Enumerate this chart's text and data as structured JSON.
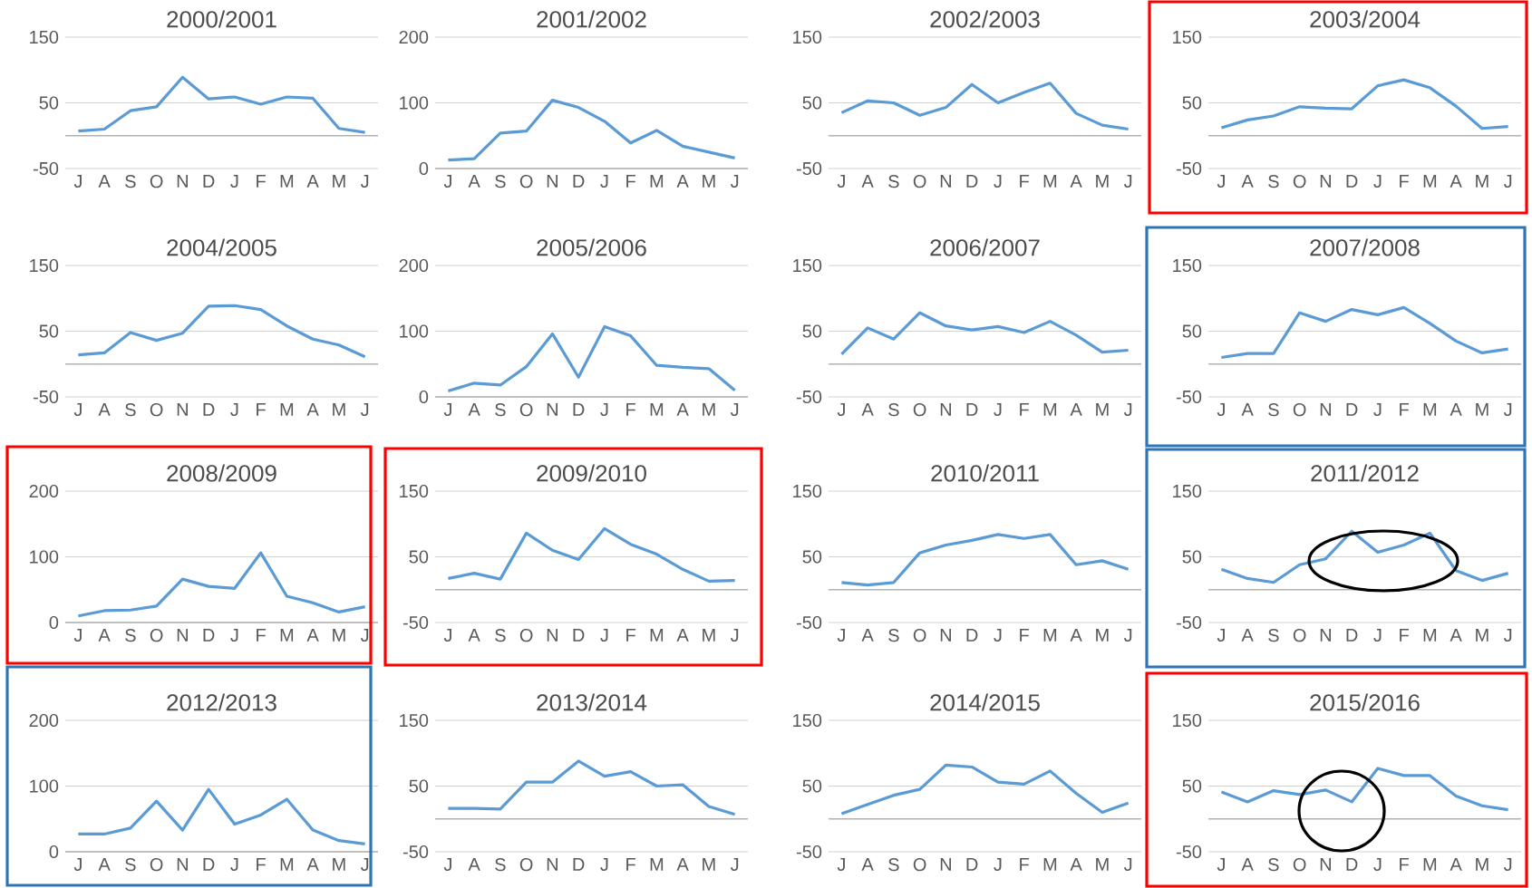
{
  "chart_data": [
    {
      "type": "line",
      "title": "2000/2001",
      "categories": [
        "J",
        "A",
        "S",
        "O",
        "N",
        "D",
        "J",
        "F",
        "M",
        "A",
        "M",
        "J"
      ],
      "values": [
        7,
        10,
        38,
        44,
        89,
        56,
        59,
        48,
        59,
        57,
        11,
        5
      ],
      "color": "#5b9bd5",
      "ylim": [
        -50,
        150
      ],
      "yticks": [
        -50,
        50,
        150
      ],
      "grid": "y"
    },
    {
      "type": "line",
      "title": "2001/2002",
      "categories": [
        "J",
        "A",
        "S",
        "O",
        "N",
        "D",
        "J",
        "F",
        "M",
        "A",
        "M",
        "J"
      ],
      "values": [
        13,
        15,
        54,
        57,
        104,
        93,
        72,
        39,
        58,
        34,
        25,
        16
      ],
      "color": "#5b9bd5",
      "ylim": [
        0,
        200
      ],
      "yticks": [
        0,
        100,
        200
      ],
      "grid": "y"
    },
    {
      "type": "line",
      "title": "2002/2003",
      "categories": [
        "J",
        "A",
        "S",
        "O",
        "N",
        "D",
        "J",
        "F",
        "M",
        "A",
        "M",
        "J"
      ],
      "values": [
        35,
        53,
        50,
        31,
        43,
        78,
        50,
        66,
        80,
        34,
        16,
        10
      ],
      "color": "#5b9bd5",
      "ylim": [
        -50,
        150
      ],
      "yticks": [
        -50,
        50,
        150
      ],
      "grid": "y"
    },
    {
      "type": "line",
      "title": "2003/2004",
      "categories": [
        "J",
        "A",
        "S",
        "O",
        "N",
        "D",
        "J",
        "F",
        "M",
        "A",
        "M",
        "J"
      ],
      "values": [
        12,
        24,
        30,
        44,
        42,
        41,
        76,
        85,
        73,
        45,
        11,
        14
      ],
      "color": "#5b9bd5",
      "ylim": [
        -50,
        150
      ],
      "yticks": [
        -50,
        50,
        150
      ],
      "grid": "y"
    },
    {
      "type": "line",
      "title": "2004/2005",
      "categories": [
        "J",
        "A",
        "S",
        "O",
        "N",
        "D",
        "J",
        "F",
        "M",
        "A",
        "M",
        "J"
      ],
      "values": [
        14,
        17,
        48,
        36,
        47,
        88,
        89,
        83,
        58,
        38,
        29,
        11
      ],
      "color": "#5b9bd5",
      "ylim": [
        -50,
        150
      ],
      "yticks": [
        -50,
        50,
        150
      ],
      "grid": "y"
    },
    {
      "type": "line",
      "title": "2005/2006",
      "categories": [
        "J",
        "A",
        "S",
        "O",
        "N",
        "D",
        "J",
        "F",
        "M",
        "A",
        "M",
        "J"
      ],
      "values": [
        9,
        21,
        18,
        46,
        96,
        30,
        107,
        93,
        48,
        45,
        43,
        10
      ],
      "color": "#5b9bd5",
      "ylim": [
        0,
        200
      ],
      "yticks": [
        0,
        100,
        200
      ],
      "grid": "y"
    },
    {
      "type": "line",
      "title": "2006/2007",
      "categories": [
        "J",
        "A",
        "S",
        "O",
        "N",
        "D",
        "J",
        "F",
        "M",
        "A",
        "M",
        "J"
      ],
      "values": [
        15,
        55,
        38,
        78,
        58,
        52,
        57,
        48,
        65,
        44,
        18,
        21
      ],
      "color": "#5b9bd5",
      "ylim": [
        -50,
        150
      ],
      "yticks": [
        -50,
        50,
        150
      ],
      "grid": "y"
    },
    {
      "type": "line",
      "title": "2007/2008",
      "categories": [
        "J",
        "A",
        "S",
        "O",
        "N",
        "D",
        "J",
        "F",
        "M",
        "A",
        "M",
        "J"
      ],
      "values": [
        10,
        16,
        16,
        78,
        65,
        83,
        75,
        86,
        62,
        35,
        17,
        23
      ],
      "color": "#5b9bd5",
      "ylim": [
        -50,
        150
      ],
      "yticks": [
        -50,
        50,
        150
      ],
      "grid": "y"
    },
    {
      "type": "line",
      "title": "2008/2009",
      "categories": [
        "J",
        "A",
        "S",
        "O",
        "N",
        "D",
        "J",
        "F",
        "M",
        "A",
        "M",
        "J"
      ],
      "values": [
        10,
        18,
        19,
        25,
        66,
        55,
        52,
        106,
        40,
        30,
        16,
        24
      ],
      "color": "#5b9bd5",
      "ylim": [
        0,
        200
      ],
      "yticks": [
        0,
        100,
        200
      ],
      "grid": "y"
    },
    {
      "type": "line",
      "title": "2009/2010",
      "categories": [
        "J",
        "A",
        "S",
        "O",
        "N",
        "D",
        "J",
        "F",
        "M",
        "A",
        "M",
        "J"
      ],
      "values": [
        17,
        25,
        16,
        86,
        60,
        46,
        93,
        69,
        54,
        31,
        13,
        14
      ],
      "color": "#5b9bd5",
      "ylim": [
        -50,
        150
      ],
      "yticks": [
        -50,
        50,
        150
      ],
      "grid": "y"
    },
    {
      "type": "line",
      "title": "2010/2011",
      "categories": [
        "J",
        "A",
        "S",
        "O",
        "N",
        "D",
        "J",
        "F",
        "M",
        "A",
        "M",
        "J"
      ],
      "values": [
        11,
        7,
        11,
        56,
        68,
        75,
        84,
        78,
        84,
        38,
        44,
        31
      ],
      "color": "#5b9bd5",
      "ylim": [
        -50,
        150
      ],
      "yticks": [
        -50,
        50,
        150
      ],
      "grid": "y"
    },
    {
      "type": "line",
      "title": "2011/2012",
      "categories": [
        "J",
        "A",
        "S",
        "O",
        "N",
        "D",
        "J",
        "F",
        "M",
        "A",
        "M",
        "J"
      ],
      "values": [
        31,
        17,
        11,
        38,
        47,
        89,
        57,
        68,
        86,
        29,
        14,
        25
      ],
      "color": "#5b9bd5",
      "ylim": [
        -50,
        150
      ],
      "yticks": [
        -50,
        50,
        150
      ],
      "grid": "y"
    },
    {
      "type": "line",
      "title": "2012/2013",
      "categories": [
        "J",
        "A",
        "S",
        "O",
        "N",
        "D",
        "J",
        "F",
        "M",
        "A",
        "M",
        "J"
      ],
      "values": [
        27,
        27,
        36,
        77,
        33,
        95,
        42,
        56,
        80,
        33,
        17,
        12
      ],
      "color": "#5b9bd5",
      "ylim": [
        0,
        200
      ],
      "yticks": [
        0,
        100,
        200
      ],
      "grid": "y"
    },
    {
      "type": "line",
      "title": "2013/2014",
      "categories": [
        "J",
        "A",
        "S",
        "O",
        "N",
        "D",
        "J",
        "F",
        "M",
        "A",
        "M",
        "J"
      ],
      "values": [
        16,
        16,
        15,
        56,
        56,
        88,
        65,
        72,
        50,
        52,
        19,
        7
      ],
      "color": "#5b9bd5",
      "ylim": [
        -50,
        150
      ],
      "yticks": [
        -50,
        50,
        150
      ],
      "grid": "y"
    },
    {
      "type": "line",
      "title": "2014/2015",
      "categories": [
        "J",
        "A",
        "S",
        "O",
        "N",
        "D",
        "J",
        "F",
        "M",
        "A",
        "M",
        "J"
      ],
      "values": [
        8,
        22,
        36,
        45,
        82,
        79,
        56,
        53,
        73,
        39,
        10,
        24
      ],
      "color": "#5b9bd5",
      "ylim": [
        -50,
        150
      ],
      "yticks": [
        -50,
        50,
        150
      ],
      "grid": "y"
    },
    {
      "type": "line",
      "title": "2015/2016",
      "categories": [
        "J",
        "A",
        "S",
        "O",
        "N",
        "D",
        "J",
        "F",
        "M",
        "A",
        "M",
        "J"
      ],
      "values": [
        41,
        26,
        43,
        37,
        44,
        26,
        77,
        66,
        66,
        35,
        20,
        14
      ],
      "color": "#5b9bd5",
      "ylim": [
        -50,
        150
      ],
      "yticks": [
        -50,
        50,
        150
      ],
      "grid": "y"
    }
  ]
}
